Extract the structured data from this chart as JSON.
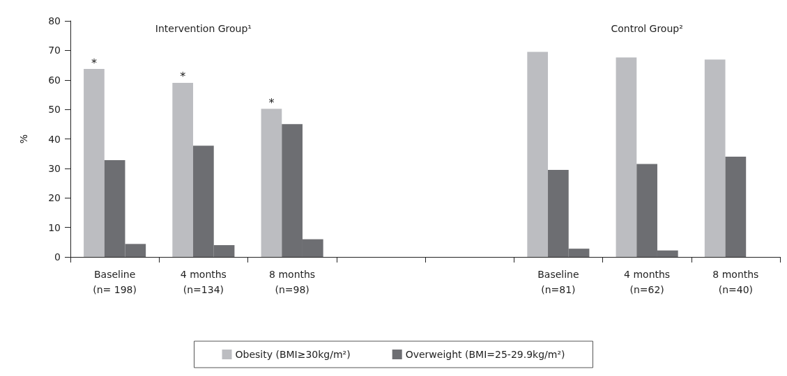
{
  "chart_data": {
    "type": "bar",
    "ylabel": "%",
    "categories": [
      "Baseline\n(n= 198)",
      "4 months\n(n=134)",
      "8 months\n(n=98)",
      null,
      null,
      "Baseline\n(n=81)",
      "4 months\n(n=62)",
      "8 months\n(n=40)"
    ],
    "series": [
      {
        "name": "Obesity (BMI≥30kg/m²)",
        "color": "#bcbdc1",
        "values": [
          63.7,
          59,
          50.2,
          null,
          null,
          69.5,
          67.6,
          66.9
        ],
        "value_labels": [
          "*",
          "*",
          "*",
          null,
          null,
          null,
          null,
          null
        ]
      },
      {
        "name": "Overweight (BMI=25-29.9kg/m²)",
        "color": "#6d6e72",
        "values": [
          32.8,
          37.7,
          45,
          null,
          null,
          29.5,
          31.5,
          34
        ]
      },
      {
        "color": "#6d6e72",
        "values": [
          4.4,
          4,
          6,
          null,
          null,
          2.8,
          2.2,
          null
        ]
      }
    ],
    "ylim": [
      0,
      80
    ],
    "yticks": [
      0,
      10,
      20,
      30,
      40,
      50,
      60,
      70,
      80
    ],
    "grid": false,
    "legend": "bottom",
    "annotations": [
      "Intervention Group¹",
      "Control Group²"
    ]
  }
}
